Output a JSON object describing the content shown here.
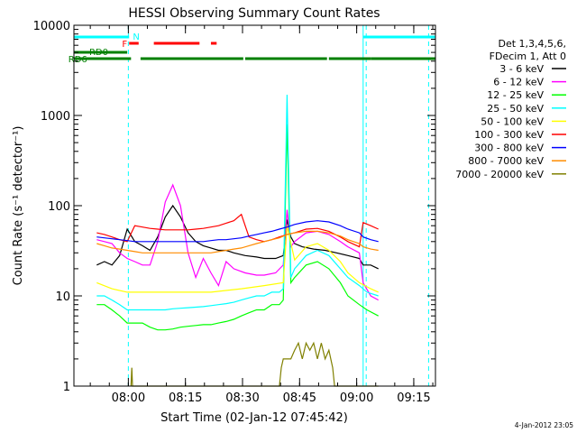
{
  "chart_data": {
    "type": "line",
    "title": "HESSI Observing Summary Count Rates",
    "xlabel": "Start Time (02-Jan-12 07:45:42)",
    "ylabel": "Count Rate (s⁻¹ detector⁻¹)",
    "x_unit": "minutes since 07:45:42",
    "xlim": [
      0,
      95
    ],
    "ylim": [
      1,
      10000
    ],
    "yscale": "log",
    "x_ticks": [
      {
        "t": 14.3,
        "label": "08:00"
      },
      {
        "t": 29.3,
        "label": "08:15"
      },
      {
        "t": 44.3,
        "label": "08:30"
      },
      {
        "t": 59.3,
        "label": "08:45"
      },
      {
        "t": 74.3,
        "label": "09:00"
      },
      {
        "t": 89.3,
        "label": "09:15"
      }
    ],
    "y_ticks": [
      {
        "v": 1,
        "label": "1"
      },
      {
        "v": 10,
        "label": "10"
      },
      {
        "v": 100,
        "label": "100"
      },
      {
        "v": 1000,
        "label": "1000"
      },
      {
        "v": 10000,
        "label": "10000"
      }
    ],
    "legend": {
      "position": "right",
      "header": [
        "Det 1,3,4,5,6,",
        "FDecim 1, Att 0"
      ]
    },
    "series": [
      {
        "name": "3 - 6 keV",
        "color": "#000000",
        "points": [
          [
            6,
            22
          ],
          [
            8,
            24
          ],
          [
            10,
            22
          ],
          [
            12,
            28
          ],
          [
            14,
            55
          ],
          [
            16,
            40
          ],
          [
            18,
            36
          ],
          [
            20,
            32
          ],
          [
            22,
            45
          ],
          [
            24,
            75
          ],
          [
            26,
            100
          ],
          [
            28,
            75
          ],
          [
            30,
            50
          ],
          [
            32,
            40
          ],
          [
            34,
            36
          ],
          [
            36,
            34
          ],
          [
            38,
            32
          ],
          [
            40,
            32
          ],
          [
            42,
            30
          ],
          [
            45,
            28
          ],
          [
            48,
            27
          ],
          [
            50,
            26
          ],
          [
            53,
            26
          ],
          [
            55,
            28
          ],
          [
            56,
            70
          ],
          [
            57,
            45
          ],
          [
            58,
            38
          ],
          [
            60,
            35
          ],
          [
            63,
            33
          ],
          [
            66,
            32
          ],
          [
            69,
            30
          ],
          [
            72,
            28
          ],
          [
            75,
            26
          ],
          [
            76,
            22
          ],
          [
            78,
            22
          ],
          [
            80,
            20
          ]
        ]
      },
      {
        "name": "6 - 12 keV",
        "color": "#ff00ff",
        "points": [
          [
            6,
            42
          ],
          [
            8,
            40
          ],
          [
            10,
            38
          ],
          [
            12,
            30
          ],
          [
            14,
            26
          ],
          [
            16,
            24
          ],
          [
            18,
            22
          ],
          [
            20,
            22
          ],
          [
            22,
            40
          ],
          [
            24,
            110
          ],
          [
            26,
            170
          ],
          [
            28,
            100
          ],
          [
            30,
            30
          ],
          [
            32,
            16
          ],
          [
            34,
            26
          ],
          [
            36,
            18
          ],
          [
            38,
            13
          ],
          [
            40,
            24
          ],
          [
            42,
            20
          ],
          [
            45,
            18
          ],
          [
            48,
            17
          ],
          [
            50,
            17
          ],
          [
            53,
            18
          ],
          [
            55,
            22
          ],
          [
            56,
            90
          ],
          [
            57,
            35
          ],
          [
            58,
            40
          ],
          [
            61,
            50
          ],
          [
            64,
            52
          ],
          [
            67,
            48
          ],
          [
            70,
            40
          ],
          [
            72,
            35
          ],
          [
            75,
            30
          ],
          [
            76,
            14
          ],
          [
            78,
            10
          ],
          [
            80,
            9
          ]
        ]
      },
      {
        "name": "12 - 25 keV",
        "color": "#00ff00",
        "points": [
          [
            6,
            8
          ],
          [
            8,
            8
          ],
          [
            10,
            7
          ],
          [
            12,
            6
          ],
          [
            14,
            5
          ],
          [
            16,
            5
          ],
          [
            18,
            5
          ],
          [
            20,
            4.5
          ],
          [
            22,
            4.2
          ],
          [
            24,
            4.2
          ],
          [
            26,
            4.3
          ],
          [
            28,
            4.5
          ],
          [
            30,
            4.6
          ],
          [
            32,
            4.7
          ],
          [
            34,
            4.8
          ],
          [
            36,
            4.8
          ],
          [
            38,
            5
          ],
          [
            40,
            5.2
          ],
          [
            42,
            5.5
          ],
          [
            44,
            6
          ],
          [
            46,
            6.5
          ],
          [
            48,
            7
          ],
          [
            50,
            7
          ],
          [
            52,
            8
          ],
          [
            54,
            8
          ],
          [
            55,
            9
          ],
          [
            56,
            800
          ],
          [
            57,
            14
          ],
          [
            58,
            16
          ],
          [
            61,
            22
          ],
          [
            64,
            24
          ],
          [
            67,
            20
          ],
          [
            70,
            14
          ],
          [
            72,
            10
          ],
          [
            75,
            8
          ],
          [
            77,
            7
          ],
          [
            80,
            6
          ]
        ]
      },
      {
        "name": "25 - 50 keV",
        "color": "#00ffff",
        "points": [
          [
            6,
            10
          ],
          [
            8,
            10
          ],
          [
            10,
            9
          ],
          [
            12,
            8
          ],
          [
            14,
            7
          ],
          [
            16,
            7
          ],
          [
            18,
            7
          ],
          [
            20,
            7
          ],
          [
            22,
            7
          ],
          [
            24,
            7
          ],
          [
            26,
            7.2
          ],
          [
            28,
            7.3
          ],
          [
            30,
            7.4
          ],
          [
            32,
            7.5
          ],
          [
            34,
            7.6
          ],
          [
            36,
            7.8
          ],
          [
            38,
            8
          ],
          [
            40,
            8.2
          ],
          [
            42,
            8.5
          ],
          [
            44,
            9
          ],
          [
            46,
            9.5
          ],
          [
            48,
            10
          ],
          [
            50,
            10
          ],
          [
            52,
            11
          ],
          [
            54,
            11
          ],
          [
            55,
            12
          ],
          [
            56,
            1700
          ],
          [
            57,
            16
          ],
          [
            58,
            20
          ],
          [
            61,
            28
          ],
          [
            64,
            32
          ],
          [
            67,
            28
          ],
          [
            70,
            20
          ],
          [
            72,
            16
          ],
          [
            75,
            13
          ],
          [
            77,
            11
          ],
          [
            80,
            10
          ]
        ]
      },
      {
        "name": "50 - 100 keV",
        "color": "#ffff00",
        "points": [
          [
            6,
            14
          ],
          [
            10,
            12
          ],
          [
            14,
            11
          ],
          [
            20,
            11
          ],
          [
            28,
            11
          ],
          [
            36,
            11
          ],
          [
            44,
            12
          ],
          [
            50,
            13
          ],
          [
            55,
            14
          ],
          [
            56,
            60
          ],
          [
            58,
            25
          ],
          [
            61,
            35
          ],
          [
            64,
            38
          ],
          [
            67,
            32
          ],
          [
            70,
            24
          ],
          [
            72,
            18
          ],
          [
            75,
            14
          ],
          [
            78,
            12
          ],
          [
            80,
            11
          ]
        ]
      },
      {
        "name": "100 - 300 keV",
        "color": "#ff0000",
        "points": [
          [
            6,
            50
          ],
          [
            8,
            48
          ],
          [
            10,
            45
          ],
          [
            12,
            42
          ],
          [
            14,
            40
          ],
          [
            16,
            60
          ],
          [
            18,
            58
          ],
          [
            20,
            56
          ],
          [
            22,
            55
          ],
          [
            24,
            54
          ],
          [
            26,
            54
          ],
          [
            28,
            54
          ],
          [
            30,
            54
          ],
          [
            32,
            55
          ],
          [
            34,
            56
          ],
          [
            36,
            58
          ],
          [
            38,
            60
          ],
          [
            40,
            64
          ],
          [
            42,
            68
          ],
          [
            44,
            80
          ],
          [
            46,
            45
          ],
          [
            48,
            42
          ],
          [
            50,
            40
          ],
          [
            52,
            42
          ],
          [
            54,
            45
          ],
          [
            56,
            48
          ],
          [
            58,
            50
          ],
          [
            61,
            55
          ],
          [
            64,
            56
          ],
          [
            67,
            52
          ],
          [
            70,
            45
          ],
          [
            72,
            40
          ],
          [
            75,
            35
          ],
          [
            76,
            65
          ],
          [
            78,
            60
          ],
          [
            80,
            55
          ]
        ]
      },
      {
        "name": "300 - 800 keV",
        "color": "#0000ff",
        "points": [
          [
            6,
            45
          ],
          [
            8,
            44
          ],
          [
            10,
            43
          ],
          [
            12,
            42
          ],
          [
            14,
            41
          ],
          [
            16,
            40
          ],
          [
            18,
            40
          ],
          [
            20,
            40
          ],
          [
            22,
            40
          ],
          [
            24,
            40
          ],
          [
            26,
            40
          ],
          [
            28,
            40
          ],
          [
            30,
            40
          ],
          [
            32,
            40
          ],
          [
            34,
            40
          ],
          [
            36,
            41
          ],
          [
            38,
            42
          ],
          [
            40,
            42
          ],
          [
            42,
            43
          ],
          [
            44,
            44
          ],
          [
            46,
            46
          ],
          [
            48,
            48
          ],
          [
            50,
            50
          ],
          [
            52,
            52
          ],
          [
            54,
            55
          ],
          [
            56,
            58
          ],
          [
            58,
            62
          ],
          [
            61,
            66
          ],
          [
            64,
            68
          ],
          [
            67,
            66
          ],
          [
            70,
            60
          ],
          [
            72,
            55
          ],
          [
            75,
            50
          ],
          [
            76,
            45
          ],
          [
            78,
            42
          ],
          [
            80,
            40
          ]
        ]
      },
      {
        "name": "800 - 7000 keV",
        "color": "#ff8c00",
        "points": [
          [
            6,
            38
          ],
          [
            8,
            36
          ],
          [
            10,
            34
          ],
          [
            12,
            33
          ],
          [
            14,
            32
          ],
          [
            16,
            31
          ],
          [
            18,
            30
          ],
          [
            20,
            30
          ],
          [
            22,
            30
          ],
          [
            24,
            30
          ],
          [
            26,
            30
          ],
          [
            28,
            30
          ],
          [
            30,
            30
          ],
          [
            32,
            30
          ],
          [
            34,
            30
          ],
          [
            36,
            30
          ],
          [
            38,
            31
          ],
          [
            40,
            32
          ],
          [
            42,
            33
          ],
          [
            44,
            34
          ],
          [
            46,
            36
          ],
          [
            48,
            38
          ],
          [
            50,
            40
          ],
          [
            52,
            42
          ],
          [
            54,
            44
          ],
          [
            56,
            48
          ],
          [
            58,
            50
          ],
          [
            61,
            52
          ],
          [
            64,
            52
          ],
          [
            67,
            50
          ],
          [
            70,
            46
          ],
          [
            72,
            42
          ],
          [
            75,
            38
          ],
          [
            76,
            35
          ],
          [
            78,
            33
          ],
          [
            80,
            32
          ]
        ]
      },
      {
        "name": "7000 - 20000 keV",
        "color": "#808000",
        "points": [
          [
            15,
            1
          ],
          [
            15.2,
            1.6
          ],
          [
            15.4,
            1
          ],
          [
            54,
            1
          ],
          [
            54.5,
            1.6
          ],
          [
            55,
            2
          ],
          [
            57,
            2
          ],
          [
            58,
            2.5
          ],
          [
            59,
            3
          ],
          [
            60,
            2
          ],
          [
            61,
            3
          ],
          [
            62,
            2.5
          ],
          [
            63,
            3
          ],
          [
            64,
            2
          ],
          [
            65,
            3
          ],
          [
            66,
            2
          ],
          [
            67,
            2.5
          ],
          [
            68,
            1.6
          ],
          [
            68.5,
            1
          ],
          [
            80,
            1
          ]
        ]
      }
    ],
    "annotations": {
      "N_label": "N",
      "F_label": "F",
      "RD0_label": "RD0",
      "RD6_label": "RD6",
      "N_segments": [
        [
          0,
          14.5
        ],
        [
          76,
          95
        ]
      ],
      "F_segments": [
        [
          14.5,
          17
        ],
        [
          21,
          33
        ],
        [
          36,
          37.5
        ]
      ],
      "RD0_segments": [
        [
          0,
          14
        ]
      ],
      "RD6_segments": [
        [
          0,
          15
        ],
        [
          17.5,
          44.5
        ],
        [
          45,
          66.5
        ],
        [
          67,
          78
        ],
        [
          78,
          95
        ]
      ],
      "dashed_lines": [
        14.3,
        76.8,
        93.2
      ],
      "solid_lines": [
        0,
        76
      ]
    },
    "footer_date": "4-Jan-2012 23:05"
  }
}
